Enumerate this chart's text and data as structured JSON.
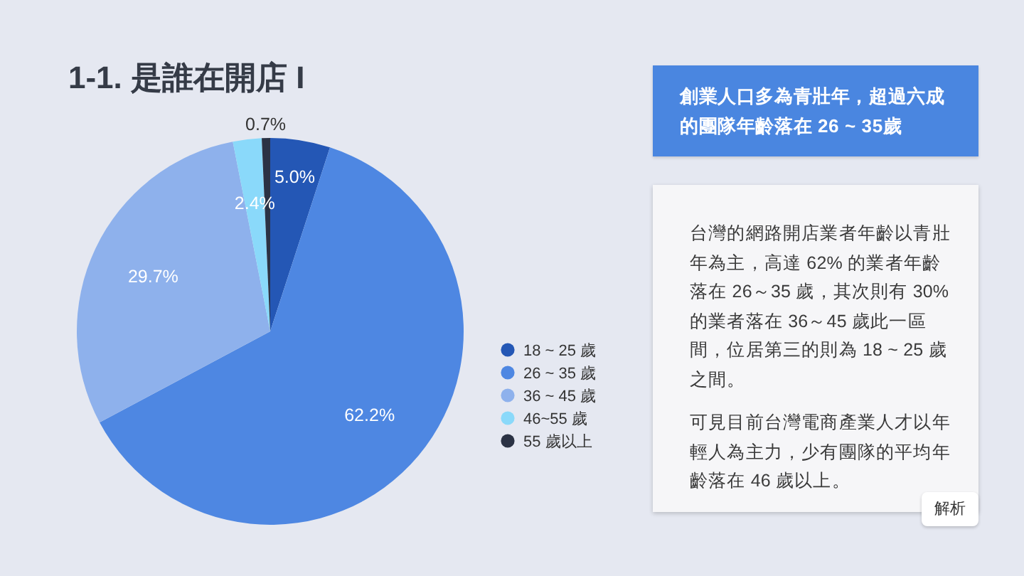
{
  "chart_data": {
    "type": "pie",
    "title": "1-1. 是誰在開店 I",
    "categories": [
      "18 ~ 25 歲",
      "26 ~ 35 歲",
      "36 ~ 45 歲",
      "46~55 歲",
      "55 歲以上"
    ],
    "values": [
      5.0,
      62.2,
      29.7,
      2.4,
      0.7
    ],
    "value_labels": [
      "5.0%",
      "62.2%",
      "29.7%",
      "2.4%",
      "0.7%"
    ],
    "colors": [
      "#2457b5",
      "#4e87e2",
      "#8eb1ec",
      "#8ad9fa",
      "#2b3244"
    ],
    "legend": "right",
    "annotations": [
      "創業人口多為青壯年，超過六成的團隊年齡落在 26 ~ 35歲",
      "台灣的網路開店業者年齡以青壯年為主，高達 62% 的業者年齡落在 26～35 歲，其次則有 30% 的業者落在 36～45 歲此一區間，位居第三的則為 18 ~ 25 歲之間。",
      "可見目前台灣電商產業人才以年輕人為主力，少有團隊的平均年齡落在 46 歲以上。",
      "解析"
    ]
  }
}
